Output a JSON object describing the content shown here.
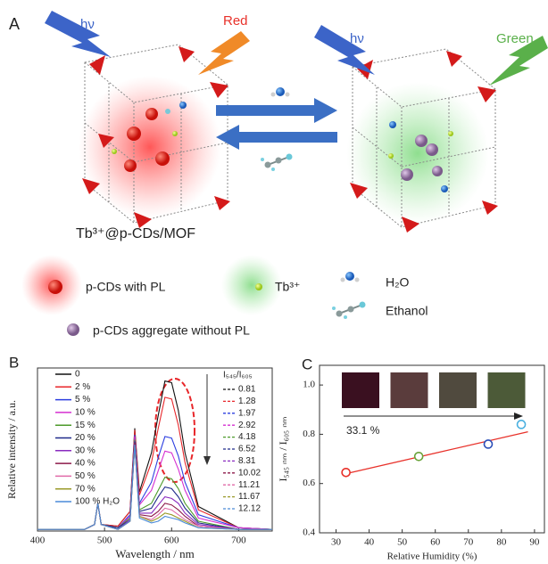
{
  "panel_a": {
    "label": "A",
    "light_left": "hν",
    "emission_left": "Red",
    "light_right": "hν",
    "emission_right": "Green",
    "composite": "Tb³⁺@p-CDs/MOF",
    "legend": [
      "p-CDs with PL",
      "Tb³⁺",
      "H₂O",
      "Ethanol",
      "p-CDs aggregate without PL"
    ]
  },
  "chart_data": [
    {
      "type": "line",
      "panel": "B",
      "xlabel": "Wavelength / nm",
      "ylabel": "Relative intensity / a.u.",
      "x": [
        400,
        470,
        485,
        490,
        495,
        520,
        538,
        545,
        552,
        570,
        580,
        590,
        600,
        610,
        620,
        640,
        700,
        750
      ],
      "xlim": [
        400,
        750
      ],
      "xticks": [
        400,
        500,
        600,
        700
      ],
      "ylim": [
        0,
        1
      ],
      "ratio_header": "I₅₄₅/I₆₀₅",
      "ratios": [
        0.81,
        1.28,
        1.97,
        2.92,
        4.18,
        6.52,
        8.31,
        10.02,
        11.21,
        11.67,
        12.12
      ],
      "series": [
        {
          "name": "0",
          "color": "#111111",
          "values": [
            0.01,
            0.01,
            0.04,
            0.17,
            0.04,
            0.03,
            0.12,
            0.63,
            0.24,
            0.48,
            0.71,
            0.92,
            0.91,
            0.74,
            0.48,
            0.15,
            0.02,
            0.01
          ]
        },
        {
          "name": "2 %",
          "color": "#e8262a",
          "values": [
            0.01,
            0.01,
            0.04,
            0.17,
            0.04,
            0.03,
            0.12,
            0.62,
            0.22,
            0.42,
            0.63,
            0.82,
            0.81,
            0.65,
            0.42,
            0.13,
            0.02,
            0.01
          ]
        },
        {
          "name": "5 %",
          "color": "#2b3ee0",
          "values": [
            0.01,
            0.01,
            0.04,
            0.17,
            0.04,
            0.02,
            0.1,
            0.59,
            0.17,
            0.3,
            0.45,
            0.58,
            0.57,
            0.46,
            0.3,
            0.1,
            0.02,
            0.01
          ]
        },
        {
          "name": "10 %",
          "color": "#d52fd0",
          "values": [
            0.01,
            0.01,
            0.04,
            0.17,
            0.04,
            0.02,
            0.09,
            0.58,
            0.16,
            0.25,
            0.37,
            0.49,
            0.48,
            0.38,
            0.25,
            0.08,
            0.02,
            0.01
          ]
        },
        {
          "name": "15 %",
          "color": "#4c9a2a",
          "values": [
            0.01,
            0.01,
            0.04,
            0.17,
            0.04,
            0.02,
            0.08,
            0.56,
            0.13,
            0.17,
            0.25,
            0.33,
            0.32,
            0.26,
            0.17,
            0.06,
            0.01,
            0.01
          ]
        },
        {
          "name": "20 %",
          "color": "#1f2a8a",
          "values": [
            0.01,
            0.01,
            0.04,
            0.17,
            0.04,
            0.02,
            0.07,
            0.55,
            0.12,
            0.14,
            0.21,
            0.27,
            0.26,
            0.21,
            0.14,
            0.05,
            0.01,
            0.01
          ]
        },
        {
          "name": "30 %",
          "color": "#8a2bbf",
          "values": [
            0.01,
            0.01,
            0.04,
            0.17,
            0.04,
            0.01,
            0.07,
            0.54,
            0.11,
            0.11,
            0.16,
            0.21,
            0.2,
            0.17,
            0.11,
            0.04,
            0.01,
            0.01
          ]
        },
        {
          "name": "40 %",
          "color": "#8c1a4a",
          "values": [
            0.01,
            0.01,
            0.04,
            0.17,
            0.04,
            0.01,
            0.06,
            0.54,
            0.1,
            0.09,
            0.12,
            0.17,
            0.16,
            0.13,
            0.09,
            0.03,
            0.01,
            0.01
          ]
        },
        {
          "name": "50 %",
          "color": "#e06aa8",
          "values": [
            0.01,
            0.01,
            0.04,
            0.17,
            0.04,
            0.01,
            0.06,
            0.53,
            0.09,
            0.07,
            0.1,
            0.14,
            0.13,
            0.1,
            0.07,
            0.03,
            0.01,
            0.01
          ]
        },
        {
          "name": "70 %",
          "color": "#9a9a2a",
          "values": [
            0.01,
            0.01,
            0.04,
            0.17,
            0.04,
            0.01,
            0.06,
            0.53,
            0.09,
            0.06,
            0.08,
            0.11,
            0.1,
            0.08,
            0.06,
            0.02,
            0.01,
            0.01
          ]
        },
        {
          "name": "100 % H₂O",
          "color": "#4a8ad8",
          "values": [
            0.01,
            0.01,
            0.04,
            0.17,
            0.04,
            0.01,
            0.06,
            0.53,
            0.08,
            0.05,
            0.06,
            0.09,
            0.08,
            0.07,
            0.05,
            0.02,
            0.01,
            0.01
          ]
        }
      ]
    },
    {
      "type": "scatter",
      "panel": "C",
      "xlabel": "Relative Humidity (%)",
      "ylabel": "I₅₄₅ ₙₘ / I₆₀₅ ₙₘ",
      "xlim": [
        25,
        93
      ],
      "xticks": [
        30,
        40,
        50,
        60,
        70,
        80,
        90
      ],
      "ylim": [
        0.4,
        1.08
      ],
      "yticks": [
        0.4,
        0.6,
        0.8,
        {
          "value": 1,
          "label": "1.0"
        }
      ],
      "x": [
        33,
        55,
        76,
        86
      ],
      "values": [
        0.645,
        0.71,
        0.76,
        0.84
      ],
      "colors": [
        "#e8312a",
        "#6aa33a",
        "#2b4fb8",
        "#4ab0e0"
      ],
      "fit": {
        "x": [
          32,
          88
        ],
        "values": [
          0.637,
          0.81
        ],
        "color": "#e8312a"
      },
      "annotation": "33.1 %",
      "inset_colors": [
        "#3a1020",
        "#5a3c3c",
        "#504a3e",
        "#4c5a38"
      ]
    }
  ]
}
